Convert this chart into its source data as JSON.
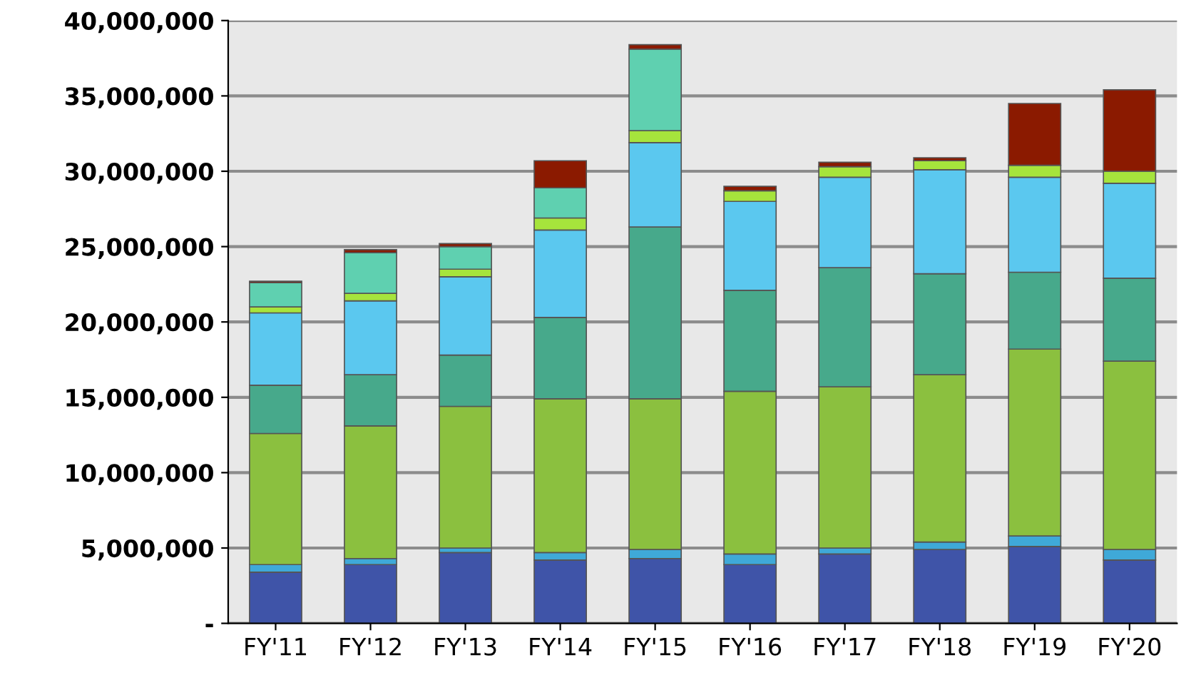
{
  "chart_data": {
    "type": "bar",
    "stacked": true,
    "grid": "y",
    "legend": false,
    "categories": [
      "FY'11",
      "FY'12",
      "FY'13",
      "FY'14",
      "FY'15",
      "FY'16",
      "FY'17",
      "FY'18",
      "FY'19",
      "FY'20"
    ],
    "ylim": [
      0,
      40000000
    ],
    "yticks": [
      {
        "value": 0,
        "label": "-"
      },
      {
        "value": 5000000,
        "label": "5,000,000"
      },
      {
        "value": 10000000,
        "label": "10,000,000"
      },
      {
        "value": 15000000,
        "label": "15,000,000"
      },
      {
        "value": 20000000,
        "label": "20,000,000"
      },
      {
        "value": 25000000,
        "label": "25,000,000"
      },
      {
        "value": 30000000,
        "label": "30,000,000"
      },
      {
        "value": 35000000,
        "label": "35,000,000"
      },
      {
        "value": 40000000,
        "label": "40,000,000"
      }
    ],
    "series": [
      {
        "color": "#3f54a8",
        "values": [
          3400000,
          3900000,
          4700000,
          4200000,
          4300000,
          3900000,
          4600000,
          4900000,
          5100000,
          4200000
        ]
      },
      {
        "color": "#3fa9d8",
        "values": [
          500000,
          400000,
          300000,
          500000,
          600000,
          700000,
          400000,
          500000,
          700000,
          700000
        ]
      },
      {
        "color": "#8bc03f",
        "values": [
          8700000,
          8800000,
          9400000,
          10200000,
          10000000,
          10800000,
          10700000,
          11100000,
          12400000,
          12500000
        ]
      },
      {
        "color": "#47a98b",
        "values": [
          3200000,
          3400000,
          3400000,
          5400000,
          11400000,
          6700000,
          7900000,
          6700000,
          5100000,
          5500000
        ]
      },
      {
        "color": "#5bc8ef",
        "values": [
          4800000,
          4900000,
          5200000,
          5800000,
          5600000,
          5900000,
          6000000,
          6900000,
          6300000,
          6300000
        ]
      },
      {
        "color": "#a6e43c",
        "values": [
          400000,
          500000,
          500000,
          800000,
          800000,
          700000,
          700000,
          600000,
          800000,
          800000
        ]
      },
      {
        "color": "#5fd0b0",
        "values": [
          1600000,
          2700000,
          1500000,
          2000000,
          5400000,
          null,
          null,
          null,
          null,
          null
        ]
      },
      {
        "color": "#8b1a00",
        "values": [
          100000,
          200000,
          200000,
          1800000,
          300000,
          300000,
          300000,
          200000,
          4100000,
          5400000
        ]
      }
    ]
  }
}
